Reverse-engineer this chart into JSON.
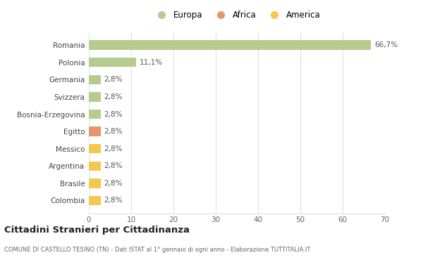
{
  "title": "Cittadini Stranieri per Cittadinanza",
  "subtitle": "COMUNE DI CASTELLO TESINO (TN) - Dati ISTAT al 1° gennaio di ogni anno - Elaborazione TUTTITALIA.IT",
  "categories": [
    "Colombia",
    "Brasile",
    "Argentina",
    "Messico",
    "Egitto",
    "Bosnia-Erzegovina",
    "Svizzera",
    "Germania",
    "Polonia",
    "Romania"
  ],
  "values": [
    2.8,
    2.8,
    2.8,
    2.8,
    2.8,
    2.8,
    2.8,
    2.8,
    11.1,
    66.7
  ],
  "bar_colors": [
    "#f2c94c",
    "#f2c94c",
    "#f2c94c",
    "#f2c94c",
    "#e8956d",
    "#b5cc8e",
    "#b5cc8e",
    "#b5cc8e",
    "#b5cc8e",
    "#b5cc8e"
  ],
  "legend": [
    {
      "label": "Europa",
      "color": "#b5cc8e"
    },
    {
      "label": "Africa",
      "color": "#e8956d"
    },
    {
      "label": "America",
      "color": "#f2c94c"
    }
  ],
  "xlim": [
    0,
    70
  ],
  "xticks": [
    0,
    10,
    20,
    30,
    40,
    50,
    60,
    70
  ],
  "background_color": "#ffffff",
  "grid_color": "#e0e0e0",
  "bar_labels": [
    "2,8%",
    "2,8%",
    "2,8%",
    "2,8%",
    "2,8%",
    "2,8%",
    "2,8%",
    "2,8%",
    "11,1%",
    "66,7%"
  ]
}
